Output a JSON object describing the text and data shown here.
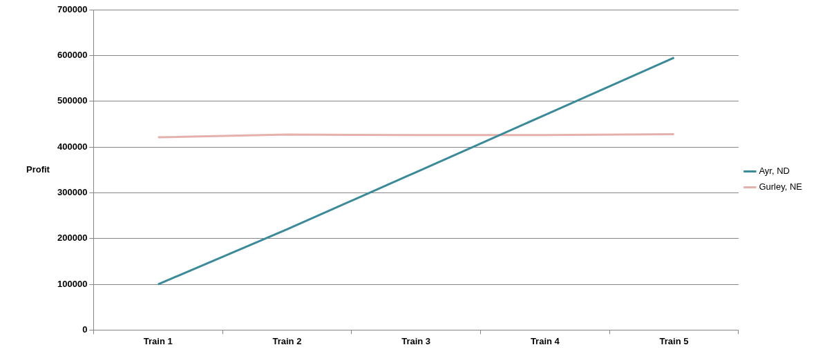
{
  "chart_data": {
    "type": "line",
    "ylabel": "Profit",
    "categories": [
      "Train 1",
      "Train 2",
      "Train 3",
      "Train 4",
      "Train 5"
    ],
    "series": [
      {
        "name": "Ayr, ND",
        "color": "#3b8a99",
        "values": [
          100000,
          220000,
          345000,
          470000,
          595000
        ]
      },
      {
        "name": "Gurley, NE",
        "color": "#e5b1ac",
        "values": [
          421000,
          427000,
          426000,
          426000,
          428000
        ]
      }
    ],
    "ylim": [
      0,
      700000
    ],
    "yticks": [
      0,
      100000,
      200000,
      300000,
      400000,
      500000,
      600000,
      700000
    ],
    "grid": "y",
    "legend": "right",
    "marker": "none",
    "line_style": "solid"
  }
}
